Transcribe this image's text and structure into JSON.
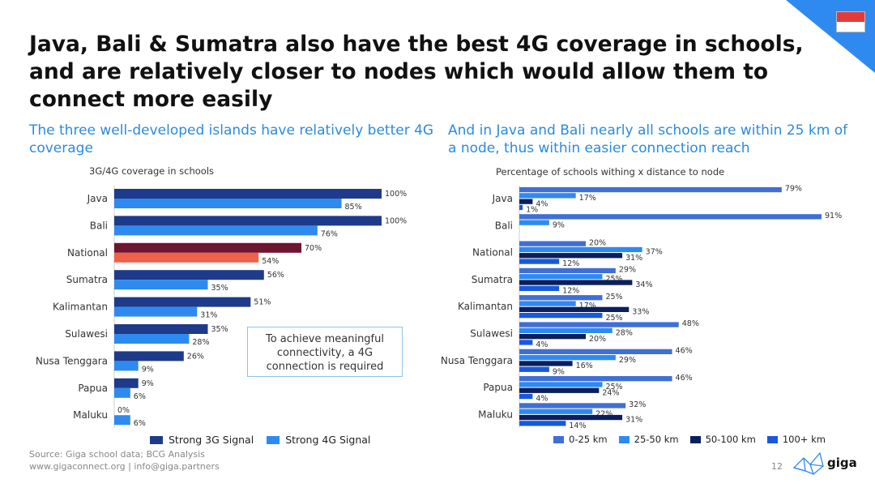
{
  "header": {
    "title": "Java, Bali & Sumatra also have the best 4G coverage in schools, and are relatively closer to nodes which would allow them to connect more easily",
    "subtitle_left": "The three well-developed islands have relatively better 4G coverage",
    "subtitle_right": "And in Java and Bali nearly all schools are within 25 km of a node, thus within easier connection reach"
  },
  "colors": {
    "strong_3g": "#1e3a8a",
    "strong_4g": "#2f8af0",
    "national_3g": "#6e1530",
    "national_4g": "#f0614a",
    "d0_25": "#3f6fd6",
    "d25_50": "#2f8af0",
    "d50_100": "#0a1f5c",
    "d100": "#1858e0",
    "accent": "#2a8be0",
    "corner": "#2f8af0"
  },
  "callout": {
    "text": "To achieve meaningful connectivity, a 4G connection is required"
  },
  "chart_data": [
    {
      "type": "bar",
      "orientation": "horizontal",
      "title": "3G/4G coverage in schools",
      "categories": [
        "Java",
        "Bali",
        "National",
        "Sumatra",
        "Kalimantan",
        "Sulawesi",
        "Nusa Tenggara",
        "Papua",
        "Maluku"
      ],
      "series": [
        {
          "name": "Strong 3G Signal",
          "values": [
            100,
            100,
            70,
            56,
            51,
            35,
            26,
            9,
            0
          ]
        },
        {
          "name": "Strong 4G Signal",
          "values": [
            85,
            76,
            54,
            35,
            31,
            28,
            9,
            6,
            6
          ]
        }
      ],
      "labels": {
        "Strong 3G Signal": [
          "100%",
          "100%",
          "70%",
          "56%",
          "51%",
          "35%",
          "26%",
          "9%",
          "0%"
        ],
        "Strong 4G Signal": [
          "85%",
          "76%",
          "54%",
          "35%",
          "31%",
          "28%",
          "9%",
          "6%",
          "6%"
        ]
      },
      "highlight_category": "National",
      "xlim": [
        0,
        100
      ],
      "legend_position": "bottom"
    },
    {
      "type": "bar",
      "orientation": "horizontal",
      "title": "Percentage of schools withing x distance to node",
      "categories": [
        "Java",
        "Bali",
        "National",
        "Sumatra",
        "Kalimantan",
        "Sulawesi",
        "Nusa Tenggara",
        "Papua",
        "Maluku"
      ],
      "series": [
        {
          "name": "0-25 km",
          "values": [
            79,
            91,
            20,
            29,
            25,
            48,
            46,
            46,
            32
          ]
        },
        {
          "name": "25-50 km",
          "values": [
            17,
            9,
            37,
            25,
            17,
            28,
            29,
            25,
            22
          ]
        },
        {
          "name": "50-100 km",
          "values": [
            4,
            null,
            31,
            34,
            33,
            20,
            16,
            24,
            31
          ]
        },
        {
          "name": "100+ km",
          "values": [
            1,
            null,
            12,
            12,
            25,
            4,
            9,
            4,
            14
          ]
        }
      ],
      "labels": {
        "0-25 km": [
          "79%",
          "91%",
          "20%",
          "29%",
          "25%",
          "48%",
          "46%",
          "46%",
          "32%"
        ],
        "25-50 km": [
          "17%",
          "9%",
          "37%",
          "25%",
          "17%",
          "28%",
          "29%",
          "25%",
          "22%"
        ],
        "50-100 km": [
          "4%",
          "",
          "31%",
          "34%",
          "33%",
          "20%",
          "16%",
          "24%",
          "31%"
        ],
        "100+ km": [
          "1%",
          "",
          "12%",
          "12%",
          "25%",
          "4%",
          "9%",
          "4%",
          "14%"
        ]
      },
      "xlim": [
        0,
        91
      ],
      "legend_position": "bottom"
    }
  ],
  "footer": {
    "source": "Source: Giga school data; BCG Analysis",
    "contact": "www.gigaconnect.org  |  info@giga.partners",
    "page": "12",
    "logo_text": "giga"
  }
}
